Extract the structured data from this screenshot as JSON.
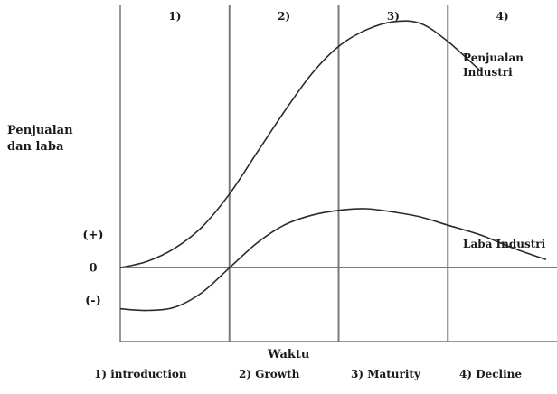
{
  "chart_data": {
    "type": "line",
    "ylabel_lines": [
      "Penjualan",
      "dan laba"
    ],
    "xlabel": "Waktu",
    "y_ticks": [
      {
        "label": "(+)",
        "value": 20
      },
      {
        "label": "0",
        "value": 0
      },
      {
        "label": "(-)",
        "value": -20
      }
    ],
    "stages": [
      {
        "top_label": "1)",
        "bottom_label": "1) introduction",
        "x_start": 0,
        "x_end": 1
      },
      {
        "top_label": "2)",
        "bottom_label": "2) Growth",
        "x_start": 1,
        "x_end": 2
      },
      {
        "top_label": "3)",
        "bottom_label": "3) Maturity",
        "x_start": 2,
        "x_end": 3
      },
      {
        "top_label": "4)",
        "bottom_label": "4) Decline",
        "x_start": 3,
        "x_end": 4
      }
    ],
    "series": [
      {
        "name": "Penjualan Industri",
        "label_lines": [
          "Penjualan",
          "Industri"
        ],
        "x": [
          0,
          0.25,
          0.5,
          0.75,
          1.0,
          1.25,
          1.5,
          1.75,
          2.0,
          2.25,
          2.5,
          2.75,
          3.0,
          3.3
        ],
        "y": [
          0,
          4,
          12,
          25,
          45,
          70,
          95,
          118,
          135,
          145,
          150,
          149,
          138,
          120
        ]
      },
      {
        "name": "Laba Industri",
        "label_lines": [
          "Laba Industri"
        ],
        "x": [
          0,
          0.25,
          0.5,
          0.75,
          1.0,
          1.25,
          1.5,
          1.75,
          2.0,
          2.25,
          2.5,
          2.75,
          3.0,
          3.3,
          3.6,
          3.9
        ],
        "y": [
          -25,
          -26,
          -24,
          -15,
          0,
          15,
          26,
          32,
          35,
          36,
          34,
          31,
          26,
          20,
          12,
          5
        ]
      }
    ],
    "xlim": [
      0,
      4
    ],
    "ylim": [
      -45,
      160
    ]
  },
  "colors": {
    "line": "#2b2b2b",
    "divider": "#7a7a7a"
  }
}
